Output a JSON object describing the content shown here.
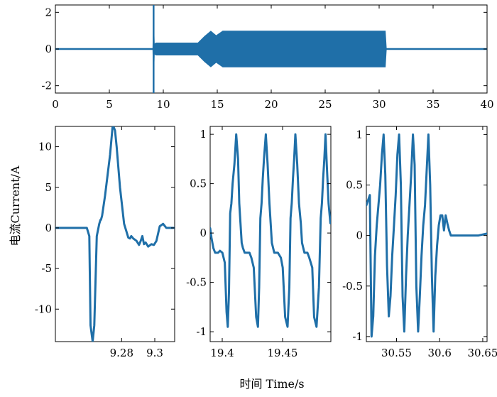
{
  "chart_data": [
    {
      "type": "line",
      "title": "",
      "xlabel": "",
      "ylabel": "",
      "xlim": [
        0,
        40
      ],
      "ylim": [
        -2.4,
        2.4
      ],
      "xticks": [
        "0",
        "5",
        "10",
        "15",
        "20",
        "25",
        "30",
        "35",
        "40"
      ],
      "yticks": [
        "-2",
        "0",
        "2"
      ],
      "series": [
        {
          "x": [
            0,
            9.0,
            9.1,
            9.2,
            9.3,
            9.4,
            13.2,
            13.8,
            14.4,
            14.9,
            15.5,
            16.5,
            17.5,
            30.6,
            30.7,
            40
          ],
          "y_upper": [
            0.03,
            0.03,
            2.4,
            0.3,
            0.35,
            0.35,
            0.35,
            0.7,
            1.0,
            0.75,
            1.0,
            1.0,
            1.0,
            1.0,
            0.03,
            0.03
          ],
          "y_lower": [
            -0.03,
            -0.03,
            -2.4,
            -0.3,
            -0.35,
            -0.35,
            -0.35,
            -0.7,
            -1.0,
            -0.75,
            -1.0,
            -1.0,
            -1.0,
            -1.0,
            -0.03,
            -0.03
          ]
        }
      ]
    },
    {
      "type": "line",
      "title": "",
      "xlabel": "",
      "ylabel": "电流Current/A",
      "xlim": [
        9.24,
        9.312
      ],
      "ylim": [
        -14,
        12.5
      ],
      "xticks": [
        "9.28",
        "9.3"
      ],
      "yticks": [
        "-10",
        "-5",
        "0",
        "5",
        "10"
      ],
      "series": [
        {
          "x": [
            9.24,
            9.257,
            9.259,
            9.2605,
            9.2612,
            9.2625,
            9.2635,
            9.265,
            9.2665,
            9.2672,
            9.2675,
            9.2682,
            9.27,
            9.273,
            9.2745,
            9.275,
            9.276,
            9.277,
            9.279,
            9.2815,
            9.284,
            9.285,
            9.2858,
            9.287,
            9.289,
            9.2905,
            9.2915,
            9.2925,
            9.2935,
            9.2945,
            9.296,
            9.298,
            9.2995,
            9.301,
            9.303,
            9.305,
            9.307,
            9.312
          ],
          "y": [
            0,
            0,
            0,
            -1.0,
            -12,
            -14,
            -12,
            -1.0,
            0.5,
            1.0,
            1.0,
            1.5,
            4.0,
            9.0,
            12.4,
            12.5,
            12.0,
            10.0,
            5.0,
            0.5,
            -1.2,
            -1.3,
            -1.0,
            -1.3,
            -1.6,
            -2.1,
            -1.6,
            -1.0,
            -2.0,
            -1.8,
            -2.3,
            -2.0,
            -2.1,
            -1.6,
            0.2,
            0.5,
            0.0,
            0.0
          ]
        }
      ]
    },
    {
      "type": "line",
      "title": "",
      "xlabel": "",
      "ylabel": "",
      "xlim": [
        19.39,
        19.49
      ],
      "ylim": [
        -1.1,
        1.08
      ],
      "xticks": [
        "19.4",
        "19.45"
      ],
      "yticks": [
        "-1",
        "-0.5",
        "0",
        "0.5",
        "1"
      ],
      "series": [
        {
          "x": [
            19.39,
            19.3911,
            19.3926,
            19.3941,
            19.3966,
            19.3981,
            19.4001,
            19.4021,
            19.4036,
            19.4046,
            19.4056,
            19.4066,
            19.4076,
            19.4086,
            19.4101,
            19.4116,
            19.4131,
            19.4141,
            19.4151,
            19.4161,
            19.4171,
            19.4186,
            19.4201,
            19.4226,
            19.4241,
            19.4261,
            19.4281,
            19.4296,
            19.4306,
            19.4316,
            19.4326,
            19.4336,
            19.4346,
            19.4361,
            19.4376,
            19.4391,
            19.4401,
            19.4411,
            19.4421,
            19.4431,
            19.4446,
            19.4461,
            19.4486,
            19.4501,
            19.4521,
            19.4541,
            19.4556,
            19.4566,
            19.4576,
            19.4586,
            19.4596,
            19.4606,
            19.4621,
            19.4636,
            19.4651,
            19.4661,
            19.4671,
            19.4681,
            19.4691,
            19.4706,
            19.4721,
            19.4746,
            19.4761,
            19.4781,
            19.4801,
            19.4816,
            19.4826,
            19.4836,
            19.4846,
            19.4856,
            19.4866,
            19.4881,
            19.4896,
            19.49
          ],
          "y": [
            0.05,
            -0.05,
            -0.15,
            -0.2,
            -0.2,
            -0.18,
            -0.2,
            -0.3,
            -0.8,
            -0.95,
            -0.6,
            0.2,
            0.3,
            0.5,
            0.7,
            1.0,
            0.75,
            0.3,
            0.1,
            -0.1,
            -0.15,
            -0.2,
            -0.2,
            -0.2,
            -0.25,
            -0.35,
            -0.85,
            -0.95,
            -0.55,
            0.15,
            0.3,
            0.55,
            0.75,
            1.0,
            0.7,
            0.3,
            0.1,
            -0.1,
            -0.15,
            -0.2,
            -0.2,
            -0.2,
            -0.25,
            -0.35,
            -0.85,
            -0.95,
            -0.55,
            0.15,
            0.3,
            0.55,
            0.75,
            1.0,
            0.7,
            0.3,
            0.1,
            -0.1,
            -0.15,
            -0.2,
            -0.2,
            -0.2,
            -0.25,
            -0.35,
            -0.85,
            -0.95,
            -0.55,
            0.15,
            0.3,
            0.55,
            0.75,
            1.0,
            0.7,
            0.3,
            0.1,
            0.15
          ]
        }
      ]
    },
    {
      "type": "line",
      "title": "",
      "xlabel": "时间 Time/s",
      "ylabel": "",
      "xlim": [
        30.515,
        30.655
      ],
      "ylim": [
        -1.05,
        1.08
      ],
      "xticks": [
        "30.55",
        "30.6",
        "30.65"
      ],
      "yticks": [
        "-1",
        "-0.5",
        "0",
        "0.5",
        "1"
      ],
      "series": [
        {
          "x": [
            30.515,
            30.519,
            30.521,
            30.523,
            30.525,
            30.527,
            30.529,
            30.531,
            30.533,
            30.535,
            30.537,
            30.539,
            30.541,
            30.543,
            30.545,
            30.547,
            30.549,
            30.551,
            30.553,
            30.555,
            30.557,
            30.559,
            30.561,
            30.563,
            30.565,
            30.567,
            30.569,
            30.571,
            30.573,
            30.575,
            30.577,
            30.579,
            30.581,
            30.583,
            30.585,
            30.587,
            30.589,
            30.591,
            30.593,
            30.595,
            30.597,
            30.599,
            30.601,
            30.603,
            30.605,
            30.607,
            30.609,
            30.611,
            30.613,
            30.618,
            30.625,
            30.635,
            30.645,
            30.655
          ],
          "y": [
            0.3,
            0.4,
            -1.0,
            -0.8,
            -0.2,
            0.1,
            0.3,
            0.5,
            0.8,
            1.0,
            0.6,
            -0.3,
            -0.8,
            -0.6,
            -0.2,
            0.1,
            0.4,
            0.8,
            1.0,
            0.5,
            -0.6,
            -0.95,
            -0.4,
            0.0,
            0.3,
            0.6,
            1.0,
            0.7,
            -0.5,
            -0.95,
            -0.6,
            -0.2,
            0.1,
            0.3,
            0.65,
            1.0,
            0.5,
            -0.4,
            -0.95,
            -0.4,
            -0.1,
            0.1,
            0.2,
            0.2,
            0.05,
            0.2,
            0.12,
            0.05,
            0.0,
            0.0,
            0.0,
            0.0,
            0.0,
            0.02
          ]
        }
      ]
    }
  ]
}
